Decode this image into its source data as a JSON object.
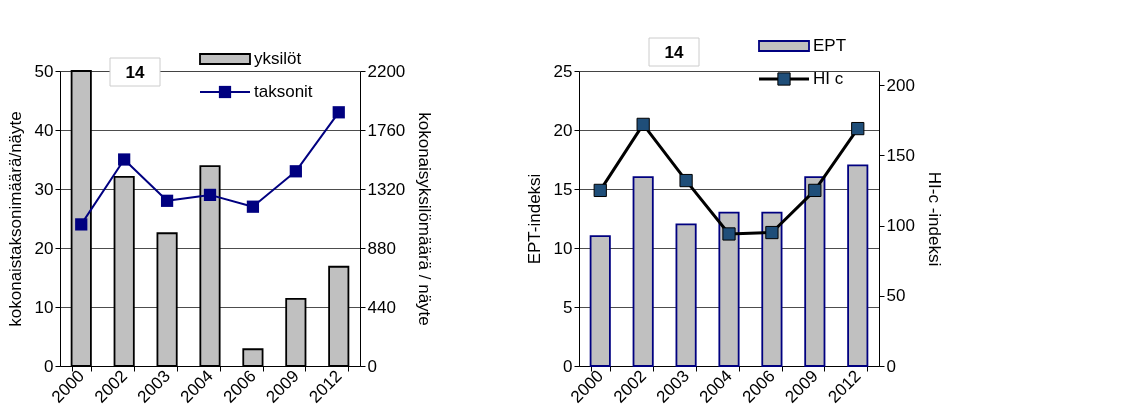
{
  "chart_data": [
    {
      "type": "bar",
      "categories": [
        "2000",
        "2002",
        "2003",
        "2004",
        "2006",
        "2009",
        "2012"
      ],
      "series": [
        {
          "name": "yksilöt",
          "axis": "y2",
          "color": "#c0c0c0",
          "values": [
            2200,
            1410,
            990,
            1490,
            125,
            500,
            740
          ]
        },
        {
          "name": "taksonit",
          "type": "line",
          "axis": "y",
          "color": "#000080",
          "values": [
            24,
            35,
            28,
            29,
            27,
            33,
            43
          ]
        }
      ],
      "ylabel": "kokonaistaksonimäärä/näyte",
      "y2label": "kokonaisyksilömäärä / näyte",
      "ylim": [
        0,
        50
      ],
      "yticks": [
        0,
        10,
        20,
        30,
        40,
        50
      ],
      "y2lim": [
        0,
        2200
      ],
      "y2ticks": [
        0,
        440,
        880,
        1320,
        1760,
        2200
      ],
      "annotations": [
        "14"
      ],
      "grid": "y",
      "legend": "top right",
      "marker": "square"
    },
    {
      "type": "bar",
      "categories": [
        "2000",
        "2002",
        "2003",
        "2004",
        "2006",
        "2009",
        "2012"
      ],
      "series": [
        {
          "name": "EPT",
          "axis": "y",
          "color": "#c0c0c0",
          "values": [
            11,
            16,
            12,
            13,
            13,
            16,
            17
          ]
        },
        {
          "name": "HI c",
          "type": "line",
          "axis": "y2",
          "color": "#000000",
          "values": [
            125,
            172,
            132,
            94,
            95,
            125,
            169
          ]
        }
      ],
      "ylabel": "EPT-indeksi",
      "y2label": "HI-c -indeksi",
      "ylim": [
        0,
        25
      ],
      "yticks": [
        0,
        5,
        10,
        15,
        20,
        25
      ],
      "y2lim": [
        0,
        210
      ],
      "y2ticks": [
        0,
        50,
        100,
        150,
        200
      ],
      "annotations": [
        "14"
      ],
      "grid": "y",
      "legend": "top right",
      "marker": "square"
    }
  ]
}
